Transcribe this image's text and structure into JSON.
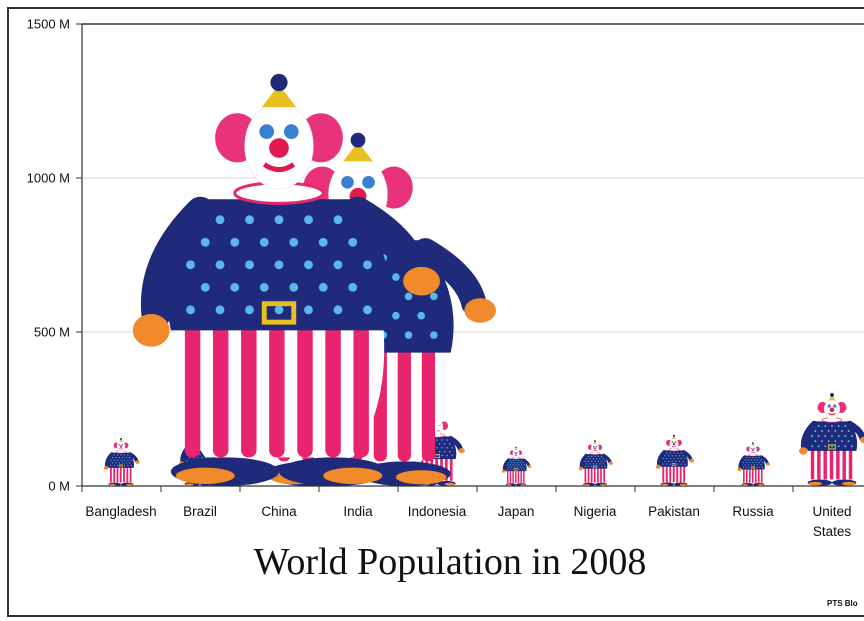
{
  "chart_data": {
    "type": "bar",
    "title": "World Population in 2008",
    "categories": [
      "Bangladesh",
      "Brazil",
      "China",
      "India",
      "Indonesia",
      "Japan",
      "Nigeria",
      "Pakistan",
      "Russia",
      "United States"
    ],
    "values": [
      155,
      190,
      1330,
      1140,
      230,
      127,
      148,
      165,
      141,
      300
    ],
    "ylim": [
      0,
      1500
    ],
    "yticks": [
      "0 M",
      "500 M",
      "1000 M",
      "1500 M"
    ],
    "ytick_values": [
      0,
      500,
      1000,
      1500
    ],
    "grid": true,
    "marker": "clown-figure",
    "colors": {
      "hair": "#e8337a",
      "body": "#1f2a7a",
      "dots": "#5ab8e8",
      "stripe": "#e8246e",
      "glove": "#f08a2a",
      "shoe": "#1f2a7a"
    }
  },
  "credit": "PTS Blo"
}
